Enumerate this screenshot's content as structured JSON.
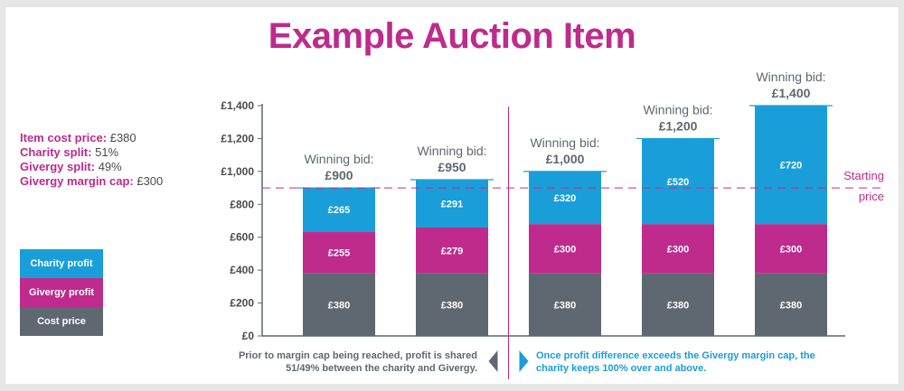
{
  "title": "Example Auction Item",
  "info": [
    {
      "key": "Item cost price:",
      "value": "£380"
    },
    {
      "key": "Charity split:",
      "value": "51%"
    },
    {
      "key": "Givergy split:",
      "value": "49%"
    },
    {
      "key": "Givergy margin cap:",
      "value": "£300"
    }
  ],
  "legend": [
    {
      "label": "Charity profit",
      "color": "#1a9ed9"
    },
    {
      "label": "Givergy profit",
      "color": "#be2b8c"
    },
    {
      "label": "Cost price",
      "color": "#5f6770"
    }
  ],
  "notes": {
    "left": "Prior to margin cap being reached, profit is shared 51/49% between the charity and Givergy.",
    "right": "Once profit difference exceeds the Givergy margin cap, the charity keeps 100% over and above."
  },
  "chart_data": {
    "type": "bar",
    "stacked": true,
    "categories": [
      "£900",
      "£950",
      "£1,000",
      "£1,200",
      "£1,400"
    ],
    "bid_prefix": "Winning bid:",
    "series": [
      {
        "name": "Cost price",
        "color": "#5f6770",
        "values": [
          380,
          380,
          380,
          380,
          380
        ]
      },
      {
        "name": "Givergy profit",
        "color": "#be2b8c",
        "values": [
          255,
          279,
          300,
          300,
          300
        ]
      },
      {
        "name": "Charity profit",
        "color": "#1a9ed9",
        "values": [
          265,
          291,
          320,
          520,
          720
        ]
      }
    ],
    "value_labels": [
      [
        "£380",
        "£255",
        "£265"
      ],
      [
        "£380",
        "£279",
        "£291"
      ],
      [
        "£380",
        "£300",
        "£320"
      ],
      [
        "£380",
        "£300",
        "£520"
      ],
      [
        "£380",
        "£300",
        "£720"
      ]
    ],
    "ylim": [
      0,
      1400
    ],
    "yticks": [
      0,
      200,
      400,
      600,
      800,
      1000,
      1200,
      1400
    ],
    "ytick_labels": [
      "£0",
      "£200",
      "£400",
      "£600",
      "£800",
      "£1,000",
      "£1,200",
      "£1,400"
    ],
    "reference_line": {
      "value": 900,
      "label": [
        "Starting",
        "price"
      ],
      "style": "dashed",
      "color": "#be2b8c"
    },
    "divider_between": [
      1,
      2
    ],
    "grid": false
  }
}
